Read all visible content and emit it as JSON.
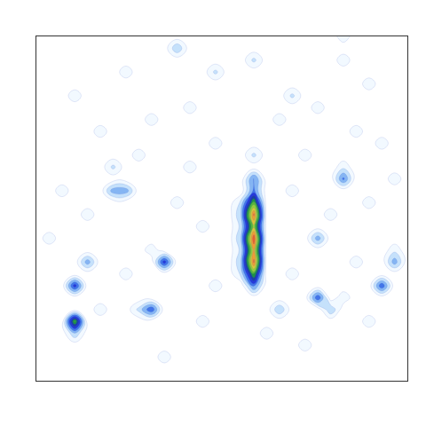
{
  "chart_data": {
    "type": "contour",
    "x": [
      0,
      1,
      2,
      3,
      4,
      5,
      6,
      7,
      8,
      9,
      10,
      11,
      12,
      13,
      14,
      15,
      16,
      17,
      18,
      19,
      20,
      21,
      22,
      23,
      24,
      25,
      26,
      27,
      28,
      29
    ],
    "y": [
      0,
      1,
      2,
      3,
      4,
      5,
      6,
      7,
      8,
      9,
      10,
      11,
      12,
      13,
      14,
      15,
      16,
      17,
      18,
      19,
      20,
      21,
      22,
      23,
      24,
      25,
      26,
      27,
      28,
      29
    ],
    "xlim": [
      0,
      29
    ],
    "ylim": [
      0,
      29
    ],
    "zlim": [
      0,
      10
    ],
    "tick_labels": false,
    "grid": false,
    "cells": [
      [
        0,
        0,
        0,
        0,
        0,
        0,
        0,
        0,
        0,
        0,
        0,
        0,
        0,
        0,
        0,
        0,
        0,
        0,
        0,
        0,
        0,
        0,
        0,
        0,
        0,
        0,
        0,
        0,
        0,
        0
      ],
      [
        0,
        0,
        0,
        0,
        0,
        0,
        0,
        0,
        0,
        0,
        0,
        0,
        0,
        0,
        0,
        0,
        0,
        0,
        0,
        0,
        0,
        0,
        0,
        0,
        0,
        0,
        0,
        0,
        0,
        0
      ],
      [
        0,
        0,
        0,
        0,
        0,
        0,
        0,
        0,
        0,
        0,
        1,
        0,
        0,
        0,
        0,
        0,
        0,
        0,
        0,
        0,
        0,
        0,
        0,
        0,
        0,
        0,
        0,
        0,
        0,
        0
      ],
      [
        0,
        0,
        0,
        0,
        0,
        0,
        0,
        0,
        0,
        0,
        0,
        0,
        0,
        0,
        0,
        0,
        0,
        0,
        0,
        0,
        0,
        1,
        0,
        0,
        0,
        0,
        0,
        0,
        0,
        0
      ],
      [
        0,
        0,
        0,
        2,
        0,
        0,
        0,
        0,
        0,
        0,
        0,
        0,
        0,
        0,
        0,
        0,
        0,
        0,
        1,
        0,
        0,
        0,
        0,
        0,
        0,
        0,
        0,
        0,
        0,
        0
      ],
      [
        0,
        0,
        0,
        6,
        0,
        0,
        0,
        0,
        0,
        0,
        0,
        0,
        0,
        1,
        0,
        0,
        0,
        0,
        0,
        0,
        0,
        0,
        0,
        0,
        0,
        0,
        1,
        0,
        0,
        0
      ],
      [
        0,
        0,
        0,
        0,
        0,
        1,
        0,
        0,
        1.5,
        3.5,
        0,
        0,
        0,
        0,
        0,
        0,
        0,
        0,
        0,
        2,
        0,
        0,
        0,
        2,
        0,
        0,
        0,
        0,
        0,
        0
      ],
      [
        0,
        0,
        0,
        0,
        0,
        0,
        0,
        0,
        0,
        0,
        0,
        0,
        0,
        0,
        0,
        0,
        0,
        0,
        0,
        0,
        0,
        0,
        3.5,
        0,
        1,
        0,
        0,
        0,
        0,
        0
      ],
      [
        0,
        0,
        0,
        4,
        0,
        0,
        0,
        0,
        0,
        0,
        0,
        0,
        0,
        0,
        1,
        0,
        0,
        3,
        0,
        0,
        0,
        0,
        0,
        0,
        0,
        0,
        0,
        3.5,
        0,
        0
      ],
      [
        0,
        0,
        0,
        0,
        0,
        0,
        0,
        1,
        0,
        0,
        0,
        0,
        0,
        0,
        0,
        0,
        1.5,
        6,
        0,
        0,
        1,
        0,
        0,
        0,
        0,
        0,
        0,
        0,
        0,
        0
      ],
      [
        0,
        0,
        0,
        0,
        2.5,
        0,
        0,
        0,
        0,
        0,
        4,
        0,
        0,
        0,
        0,
        0,
        2,
        9,
        0,
        0,
        0,
        0,
        0,
        0,
        0,
        1,
        0,
        0,
        2.5,
        0
      ],
      [
        0,
        0,
        0,
        0,
        0,
        0,
        0,
        0,
        0,
        1,
        0,
        0,
        0,
        0,
        0,
        0,
        1.5,
        8,
        0,
        0,
        0,
        0,
        0,
        0,
        0,
        0,
        0,
        0,
        1,
        0
      ],
      [
        0,
        1,
        0,
        0,
        0,
        0,
        0,
        0,
        0,
        0,
        0,
        0,
        0,
        0,
        0,
        0,
        2,
        9.5,
        0,
        0,
        0,
        0,
        2.5,
        0,
        0,
        0,
        0,
        0,
        0,
        0
      ],
      [
        0,
        0,
        0,
        0,
        0,
        0,
        0,
        0,
        0,
        0,
        0,
        0,
        0,
        1,
        0,
        0,
        1.5,
        7,
        0,
        0,
        0,
        0,
        0,
        0,
        0,
        0,
        0,
        0,
        0,
        0
      ],
      [
        0,
        0,
        0,
        0,
        1,
        0,
        0,
        0,
        0,
        0,
        0,
        0,
        0,
        0,
        0,
        0,
        2,
        9,
        0,
        0,
        0,
        0,
        0,
        1,
        0,
        0,
        0,
        0,
        0,
        0
      ],
      [
        0,
        0,
        0,
        0,
        0,
        0,
        0,
        0,
        0,
        0,
        0,
        1,
        0,
        0,
        0,
        0,
        1.5,
        6,
        0,
        0,
        0,
        0,
        0,
        0,
        0,
        0,
        1,
        0,
        0,
        0
      ],
      [
        0,
        0,
        1,
        0,
        0,
        0,
        2.5,
        2.5,
        0,
        0,
        0,
        0,
        0,
        0,
        0,
        0,
        0,
        3,
        0,
        0,
        1,
        0,
        0,
        0,
        0,
        0,
        0,
        0,
        0,
        0
      ],
      [
        0,
        0,
        0,
        0,
        0,
        0,
        0,
        0,
        0,
        0,
        0,
        0,
        0,
        0,
        0,
        0,
        0,
        3,
        0,
        0,
        0,
        0,
        0,
        0,
        3,
        0,
        0,
        0,
        1,
        0
      ],
      [
        0,
        0,
        0,
        0,
        0,
        0,
        1.5,
        0,
        0,
        0,
        0,
        0,
        1,
        0,
        0,
        0,
        0,
        0,
        0,
        0,
        0,
        0,
        0,
        0,
        1,
        0,
        0,
        0,
        0,
        0
      ],
      [
        0,
        0,
        0,
        0,
        0,
        0,
        0,
        0,
        1,
        0,
        0,
        0,
        0,
        0,
        0,
        0,
        0,
        1.5,
        0,
        0,
        0,
        1,
        0,
        0,
        0,
        0,
        0,
        0,
        0,
        0
      ],
      [
        0,
        0,
        0,
        0,
        0,
        0,
        0,
        0,
        0,
        0,
        0,
        0,
        0,
        0,
        1,
        0,
        0,
        0,
        0,
        0,
        0,
        0,
        0,
        0,
        0,
        0,
        0,
        1,
        0,
        0
      ],
      [
        0,
        0,
        0,
        0,
        0,
        1,
        0,
        0,
        0,
        0,
        0,
        0,
        0,
        0,
        0,
        0,
        0,
        0,
        0,
        0,
        0,
        0,
        0,
        0,
        0,
        1,
        0,
        0,
        0,
        0
      ],
      [
        0,
        0,
        0,
        0,
        0,
        0,
        0,
        0,
        0,
        1,
        0,
        0,
        0,
        0,
        0,
        0,
        0,
        0,
        0,
        1,
        0,
        0,
        0,
        0,
        0,
        0,
        0,
        0,
        0,
        0
      ],
      [
        0,
        0,
        0,
        0,
        0,
        0,
        0,
        0,
        0,
        0,
        0,
        0,
        1,
        0,
        0,
        0,
        0,
        0,
        0,
        0,
        0,
        0,
        1,
        0,
        0,
        0,
        0,
        0,
        0,
        0
      ],
      [
        0,
        0,
        0,
        1,
        0,
        0,
        0,
        0,
        0,
        0,
        0,
        0,
        0,
        0,
        0,
        0,
        0,
        0,
        0,
        0,
        1.5,
        0,
        0,
        0,
        0,
        0,
        0,
        0,
        0,
        0
      ],
      [
        0,
        0,
        0,
        0,
        0,
        0,
        0,
        0,
        0,
        0,
        0,
        0,
        0,
        0,
        0,
        0,
        0,
        0,
        0,
        0,
        0,
        0,
        0,
        0,
        0,
        0,
        1,
        0,
        0,
        0
      ],
      [
        0,
        0,
        0,
        0,
        0,
        0,
        0,
        1,
        0,
        0,
        0,
        0,
        0,
        0,
        1.5,
        0,
        0,
        0,
        0,
        0,
        0,
        0,
        0,
        0,
        0,
        0,
        0,
        0,
        0,
        0
      ],
      [
        0,
        0,
        0,
        0,
        0,
        0,
        0,
        0,
        0,
        0,
        0,
        0,
        0,
        0,
        0,
        0,
        0,
        1.5,
        0,
        0,
        0,
        0,
        0,
        0,
        1,
        0,
        0,
        0,
        0,
        0
      ],
      [
        0,
        0,
        0,
        0,
        0,
        0,
        0,
        0,
        0,
        0,
        0,
        2,
        0,
        0,
        0,
        0,
        0,
        0,
        0,
        0,
        0,
        0,
        0,
        0,
        0,
        0,
        0,
        0,
        0,
        0
      ],
      [
        0,
        0,
        0,
        0,
        0,
        0,
        0,
        0,
        0,
        0,
        0,
        0,
        0,
        0,
        0,
        0,
        0,
        0,
        0,
        0,
        0,
        0,
        0,
        0,
        1,
        0,
        0,
        0,
        0,
        0
      ]
    ]
  }
}
